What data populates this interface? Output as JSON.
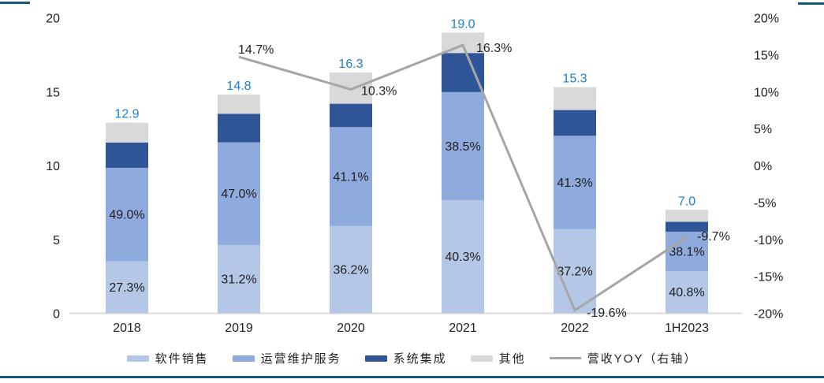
{
  "frame": {
    "top_tick_color": "#17557C",
    "bottom_line_color": "#15567B",
    "background": "#ffffff"
  },
  "chart_data": {
    "type": "bar",
    "subtype": "stacked-bar-with-line-combo",
    "title": "",
    "categories": [
      "2018",
      "2019",
      "2020",
      "2021",
      "2022",
      "1H2023"
    ],
    "bar_totals": [
      12.9,
      14.8,
      16.3,
      19.0,
      15.3,
      7.0
    ],
    "bar_total_labels": [
      "12.9",
      "14.8",
      "16.3",
      "19.0",
      "15.3",
      "7.0"
    ],
    "bar_total_label_color": "#1680D2",
    "series": [
      {
        "name": "软件销售",
        "color": "#B4C7E7",
        "share_pct": [
          27.3,
          31.2,
          36.2,
          40.3,
          37.2,
          40.8
        ],
        "labels": [
          "27.3%",
          "31.2%",
          "36.2%",
          "40.3%",
          "37.2%",
          "40.8%"
        ]
      },
      {
        "name": "运营维护服务",
        "color": "#8FAADC",
        "share_pct": [
          49.0,
          47.0,
          41.1,
          38.5,
          41.3,
          38.1
        ],
        "labels": [
          "49.0%",
          "47.0%",
          "41.1%",
          "38.5%",
          "41.3%",
          "38.1%"
        ]
      },
      {
        "name": "系统集成",
        "color": "#2F5597",
        "share_pct": [
          13.3,
          13.0,
          9.7,
          13.9,
          11.4,
          9.5
        ],
        "labels": null
      },
      {
        "name": "其他",
        "color": "#D9D9D9",
        "share_pct": [
          10.4,
          8.8,
          13.0,
          7.3,
          10.1,
          11.6
        ],
        "labels": null
      }
    ],
    "line_series": {
      "name": "营收YOY（右轴）",
      "color": "#A6A6A6",
      "values": [
        null,
        14.7,
        10.3,
        16.3,
        -19.6,
        -9.7
      ],
      "labels": [
        null,
        "14.7%",
        "10.3%",
        "16.3%",
        "-19.6%",
        "-9.7%"
      ]
    },
    "left_axis": {
      "min": 0,
      "max": 20,
      "ticks": [
        "20",
        "15",
        "10",
        "5",
        "0"
      ]
    },
    "right_axis": {
      "min": -20,
      "max": 20,
      "ticks": [
        "20%",
        "15%",
        "10%",
        "5%",
        "0%",
        "-5%",
        "-10%",
        "-15%",
        "-20%"
      ]
    },
    "axis_text_color": "#1f1f1f",
    "segment_label_color": "#1f1f1f",
    "baseline_color": "#D9D9D9",
    "grid": "off",
    "legend_position": "bottom",
    "legend": {
      "items": [
        {
          "label": "软件销售",
          "swatch": "rect",
          "color": "#B4C7E7"
        },
        {
          "label": "运营维护服务",
          "swatch": "rect",
          "color": "#8FAADC"
        },
        {
          "label": "系统集成",
          "swatch": "rect",
          "color": "#2F5597"
        },
        {
          "label": "其他",
          "swatch": "rect",
          "color": "#D9D9D9"
        },
        {
          "label": "营收YOY（右轴）",
          "swatch": "line",
          "color": "#A6A6A6"
        }
      ]
    }
  }
}
